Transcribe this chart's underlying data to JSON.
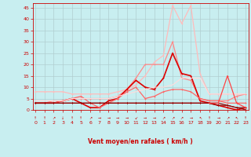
{
  "xlabel": "Vent moyen/en rafales ( km/h )",
  "background_color": "#c8eef0",
  "grid_color": "#b0cdd0",
  "text_color": "#cc0000",
  "ylim": [
    0,
    47
  ],
  "xlim": [
    -0.3,
    23.3
  ],
  "yticks": [
    0,
    5,
    10,
    15,
    20,
    25,
    30,
    35,
    40,
    45
  ],
  "xticks": [
    0,
    1,
    2,
    3,
    4,
    5,
    6,
    7,
    8,
    9,
    10,
    11,
    12,
    13,
    14,
    15,
    16,
    17,
    18,
    19,
    20,
    21,
    22,
    23
  ],
  "lines": [
    {
      "comment": "lightest pink - highest peak, goes from ~8 left up to 46 at x=15 then 46 at x=17",
      "x": [
        0,
        1,
        2,
        3,
        4,
        5,
        6,
        7,
        8,
        9,
        10,
        11,
        12,
        13,
        14,
        15,
        16,
        17,
        18,
        19,
        20,
        21,
        22,
        23
      ],
      "y": [
        8,
        8,
        8,
        8,
        7,
        7,
        7,
        7,
        7,
        8,
        9,
        11,
        15,
        21,
        24,
        46,
        38,
        46,
        16,
        7,
        7,
        7,
        7,
        7
      ],
      "color": "#ffbbbb",
      "lw": 0.9,
      "marker": "+"
    },
    {
      "comment": "medium pink - rises to ~20 at x=12-13, then 30 at x=15",
      "x": [
        0,
        1,
        2,
        3,
        4,
        5,
        6,
        7,
        8,
        9,
        10,
        11,
        12,
        13,
        14,
        15,
        16,
        17,
        18,
        19,
        20,
        21,
        22,
        23
      ],
      "y": [
        3,
        3,
        4,
        4,
        5,
        5,
        5,
        5,
        5,
        6,
        9,
        14,
        20,
        20,
        20,
        30,
        14,
        13,
        5,
        4,
        4,
        4,
        6,
        7
      ],
      "color": "#ff8888",
      "lw": 0.9,
      "marker": "+"
    },
    {
      "comment": "bright red - big peak at x=15 ~25, goes low after",
      "x": [
        0,
        1,
        2,
        3,
        4,
        5,
        6,
        7,
        8,
        9,
        10,
        11,
        12,
        13,
        14,
        15,
        16,
        17,
        18,
        19,
        20,
        21,
        22,
        23
      ],
      "y": [
        3,
        3,
        3,
        4,
        5,
        3,
        1,
        1,
        4,
        5,
        9,
        13,
        10,
        9,
        14,
        25,
        16,
        15,
        4,
        3,
        2,
        1,
        0,
        1
      ],
      "color": "#dd0000",
      "lw": 1.2,
      "marker": "+"
    },
    {
      "comment": "medium salmon - moderate line ~3-10",
      "x": [
        0,
        1,
        2,
        3,
        4,
        5,
        6,
        7,
        8,
        9,
        10,
        11,
        12,
        13,
        14,
        15,
        16,
        17,
        18,
        19,
        20,
        21,
        22,
        23
      ],
      "y": [
        3,
        3,
        3,
        4,
        5,
        6,
        3,
        1,
        3,
        5,
        8,
        10,
        5,
        6,
        8,
        9,
        9,
        8,
        5,
        4,
        4,
        3,
        3,
        3
      ],
      "color": "#ff6666",
      "lw": 0.9,
      "marker": "+"
    },
    {
      "comment": "very light pink no marker - smooth rising to ~15",
      "x": [
        0,
        1,
        2,
        3,
        4,
        5,
        6,
        7,
        8,
        9,
        10,
        11,
        12,
        13,
        14,
        15,
        16,
        17,
        18,
        19,
        20,
        21,
        22,
        23
      ],
      "y": [
        4,
        4,
        4,
        4,
        5,
        5,
        5,
        5,
        5,
        6,
        7,
        8,
        9,
        10,
        10,
        11,
        14,
        14,
        14,
        7,
        7,
        7,
        7,
        7
      ],
      "color": "#ffdddd",
      "lw": 0.8,
      "marker": null
    },
    {
      "comment": "dark red flat ~3, goes down to 0 at end",
      "x": [
        0,
        1,
        2,
        3,
        4,
        5,
        6,
        7,
        8,
        9,
        10,
        11,
        12,
        13,
        14,
        15,
        16,
        17,
        18,
        19,
        20,
        21,
        22,
        23
      ],
      "y": [
        3,
        3,
        3,
        3,
        3,
        3,
        3,
        3,
        3,
        3,
        3,
        3,
        3,
        3,
        3,
        3,
        3,
        3,
        3,
        3,
        3,
        2,
        1,
        1
      ],
      "color": "#880000",
      "lw": 0.8,
      "marker": "+"
    },
    {
      "comment": "dark red2 - flat ~3, drops at end to 0",
      "x": [
        0,
        1,
        2,
        3,
        4,
        5,
        6,
        7,
        8,
        9,
        10,
        11,
        12,
        13,
        14,
        15,
        16,
        17,
        18,
        19,
        20,
        21,
        22,
        23
      ],
      "y": [
        3,
        3,
        3,
        3,
        3,
        3,
        3,
        3,
        3,
        3,
        3,
        3,
        3,
        3,
        3,
        3,
        3,
        3,
        3,
        3,
        2,
        2,
        1,
        0
      ],
      "color": "#990000",
      "lw": 0.8,
      "marker": "+"
    },
    {
      "comment": "triangles at x=21-22, ~15 peak",
      "x": [
        19,
        20,
        21,
        22,
        23
      ],
      "y": [
        3,
        3,
        15,
        3,
        1
      ],
      "color": "#ff4444",
      "lw": 0.9,
      "marker": "+"
    }
  ],
  "arrow_markers": [
    "↑",
    "↑",
    "↗",
    "↓",
    "↑",
    "↑",
    "↗",
    "→",
    "→",
    "→",
    "→",
    "↙",
    "→",
    "→",
    "↗",
    "↗",
    "↗",
    "→",
    "↖",
    "↑",
    "→",
    "↗",
    "↖",
    "↑"
  ]
}
